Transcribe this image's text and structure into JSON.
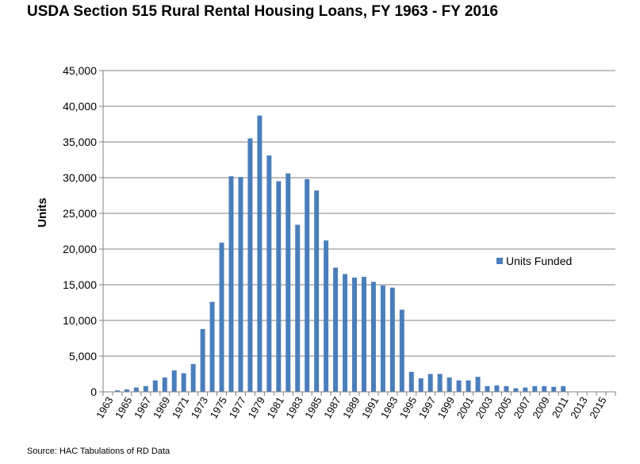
{
  "title": "USDA Section 515 Rural Rental Housing Loans, FY 1963 - FY 2016",
  "source": "Source: HAC Tabulations of RD Data",
  "colors": {
    "bar": "#4a7ebb",
    "gridline": "#808080",
    "axis": "#808080"
  },
  "chart_data": {
    "type": "bar",
    "title": "USDA Section 515 Rural Rental Housing Loans, FY 1963 - FY 2016",
    "ylabel": "Units",
    "xlabel": "",
    "ylim": [
      0,
      45000
    ],
    "yticks": [
      "0",
      "5,000",
      "10,000",
      "15,000",
      "20,000",
      "25,000",
      "30,000",
      "35,000",
      "40,000",
      "45,000"
    ],
    "grid": "horizontal",
    "legend_position": "right",
    "categories": [
      "1963",
      "1964",
      "1965",
      "1966",
      "1967",
      "1968",
      "1969",
      "1970",
      "1971",
      "1972",
      "1973",
      "1974",
      "1975",
      "1976",
      "1977",
      "1978",
      "1979",
      "1980",
      "1981",
      "1982",
      "1983",
      "1984",
      "1985",
      "1986",
      "1987",
      "1988",
      "1989",
      "1990",
      "1991",
      "1992",
      "1993",
      "1994",
      "1995",
      "1996",
      "1997",
      "1998",
      "1999",
      "2000",
      "2001",
      "2002",
      "2003",
      "2004",
      "2005",
      "2006",
      "2007",
      "2008",
      "2009",
      "2010",
      "2011",
      "2012",
      "2013",
      "2014",
      "2015",
      "2016"
    ],
    "tick_labels": [
      "1963",
      "1965",
      "1967",
      "1969",
      "1971",
      "1973",
      "1975",
      "1977",
      "1979",
      "1981",
      "1983",
      "1985",
      "1987",
      "1989",
      "1991",
      "1993",
      "1995",
      "1997",
      "1999",
      "2001",
      "2003",
      "2005",
      "2007",
      "2009",
      "2011",
      "2013",
      "2015"
    ],
    "series": [
      {
        "name": "Units Funded",
        "values": [
          50,
          200,
          350,
          600,
          800,
          1600,
          2000,
          3000,
          2600,
          3900,
          8800,
          12600,
          20900,
          30200,
          30100,
          35500,
          38700,
          33100,
          29500,
          30600,
          23400,
          29800,
          28200,
          21200,
          17400,
          16500,
          16000,
          16100,
          15400,
          14900,
          14600,
          11500,
          2800,
          1900,
          2500,
          2500,
          2000,
          1600,
          1600,
          2100,
          800,
          900,
          800,
          500,
          600,
          800,
          800,
          700,
          800,
          0,
          0,
          0,
          0,
          0
        ]
      }
    ]
  }
}
